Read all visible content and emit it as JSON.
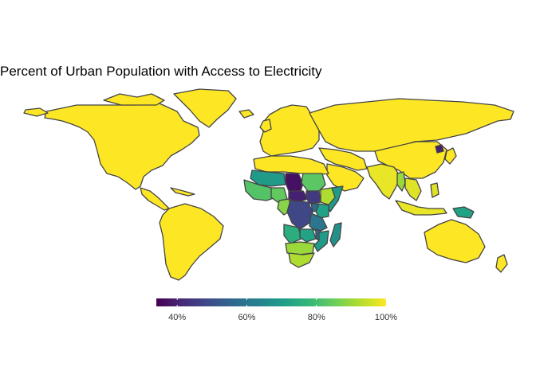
{
  "map": {
    "title": "Percent of Urban Population with Access to Electricity",
    "color_scale": {
      "name": "viridis",
      "stops": [
        "#440154",
        "#482878",
        "#3E4A89",
        "#31688E",
        "#26828E",
        "#1F9E89",
        "#35B779",
        "#6DCD59",
        "#B4DE2C",
        "#FDE725"
      ],
      "domain_min": 34,
      "domain_max": 100
    },
    "legend": {
      "position": "bottom",
      "ticks": [
        {
          "value": 40,
          "label": "40%"
        },
        {
          "value": 60,
          "label": "60%"
        },
        {
          "value": 80,
          "label": "80%"
        },
        {
          "value": 100,
          "label": "100%"
        }
      ]
    },
    "regions": [
      {
        "name": "North America",
        "value": 100
      },
      {
        "name": "Greenland",
        "value": 100
      },
      {
        "name": "Central America & Caribbean",
        "value": 100
      },
      {
        "name": "South America",
        "value": 100
      },
      {
        "name": "Europe",
        "value": 100
      },
      {
        "name": "Iceland",
        "value": 100
      },
      {
        "name": "Russia & Central Asia",
        "value": 100
      },
      {
        "name": "Middle East",
        "value": 100
      },
      {
        "name": "North Africa",
        "value": 100
      },
      {
        "name": "Arabian Peninsula",
        "value": 100
      },
      {
        "name": "South Asia",
        "value": 98
      },
      {
        "name": "East Asia",
        "value": 100
      },
      {
        "name": "North Korea",
        "value": 40
      },
      {
        "name": "Japan",
        "value": 100
      },
      {
        "name": "Southeast Asia",
        "value": 97
      },
      {
        "name": "Myanmar",
        "value": 90
      },
      {
        "name": "Indonesia",
        "value": 98
      },
      {
        "name": "Papua New Guinea",
        "value": 72
      },
      {
        "name": "Australia",
        "value": 100
      },
      {
        "name": "New Zealand",
        "value": 100
      },
      {
        "name": "Madagascar",
        "value": 67
      },
      {
        "name": "West Africa coast",
        "value": 82
      },
      {
        "name": "Sahel",
        "value": 70
      },
      {
        "name": "Chad",
        "value": 37
      },
      {
        "name": "Central African Republic",
        "value": 40
      },
      {
        "name": "Sudan",
        "value": 83
      },
      {
        "name": "Ethiopia",
        "value": 92
      },
      {
        "name": "South Sudan",
        "value": 45
      },
      {
        "name": "Somalia",
        "value": 70
      },
      {
        "name": "Nigeria",
        "value": 84
      },
      {
        "name": "Cameroon",
        "value": 88
      },
      {
        "name": "DR Congo",
        "value": 48
      },
      {
        "name": "Kenya",
        "value": 72
      },
      {
        "name": "Tanzania",
        "value": 60
      },
      {
        "name": "Uganda",
        "value": 57
      },
      {
        "name": "Angola",
        "value": 75
      },
      {
        "name": "Zambia",
        "value": 72
      },
      {
        "name": "Mozambique",
        "value": 70
      },
      {
        "name": "Malawi",
        "value": 55
      },
      {
        "name": "Southern Africa",
        "value": 90
      },
      {
        "name": "South Africa",
        "value": 92
      }
    ]
  }
}
